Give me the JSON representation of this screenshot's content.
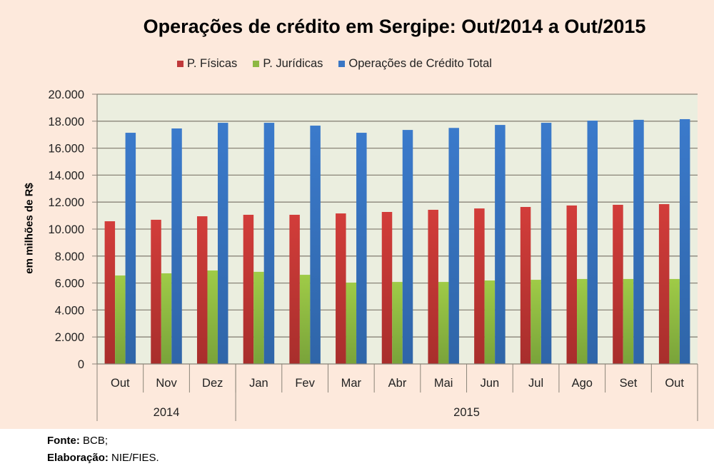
{
  "chart_data": {
    "type": "bar",
    "title": "Operações de crédito em Sergipe: Out/2014 a Out/2015",
    "xlabel": "",
    "ylabel": "em milhões de R$",
    "ylim": [
      0,
      20000
    ],
    "yticks": [
      0,
      2000,
      4000,
      6000,
      8000,
      10000,
      12000,
      14000,
      16000,
      18000,
      20000
    ],
    "ytick_labels": [
      "0",
      "2.000",
      "4.000",
      "6.000",
      "8.000",
      "10.000",
      "12.000",
      "14.000",
      "16.000",
      "18.000",
      "20.000"
    ],
    "grid": true,
    "legend_position": "top-center",
    "categories": [
      "Out",
      "Nov",
      "Dez",
      "Jan",
      "Fev",
      "Mar",
      "Abr",
      "Mai",
      "Jun",
      "Jul",
      "Ago",
      "Set",
      "Out"
    ],
    "category_groups": [
      {
        "label": "2014",
        "count": 3
      },
      {
        "label": "2015",
        "count": 10
      }
    ],
    "series": [
      {
        "name": "P. Físicas",
        "color": "#c0393b",
        "values": [
          10580,
          10690,
          10950,
          11060,
          11060,
          11160,
          11270,
          11430,
          11530,
          11640,
          11750,
          11800,
          11850
        ]
      },
      {
        "name": "P. Jurídicas",
        "color": "#8db843",
        "values": [
          6560,
          6720,
          6930,
          6830,
          6610,
          6030,
          6080,
          6080,
          6190,
          6240,
          6300,
          6300,
          6300
        ]
      },
      {
        "name": "Operações de Crédito Total",
        "color": "#3a76c4",
        "values": [
          17140,
          17460,
          17880,
          17880,
          17670,
          17140,
          17350,
          17500,
          17720,
          17880,
          18040,
          18100,
          18150
        ]
      }
    ]
  },
  "footer": {
    "source_label": "Fonte:",
    "source_value": " BCB;",
    "credit_label": "Elaboração:",
    "credit_value": " NIE/FIES."
  }
}
